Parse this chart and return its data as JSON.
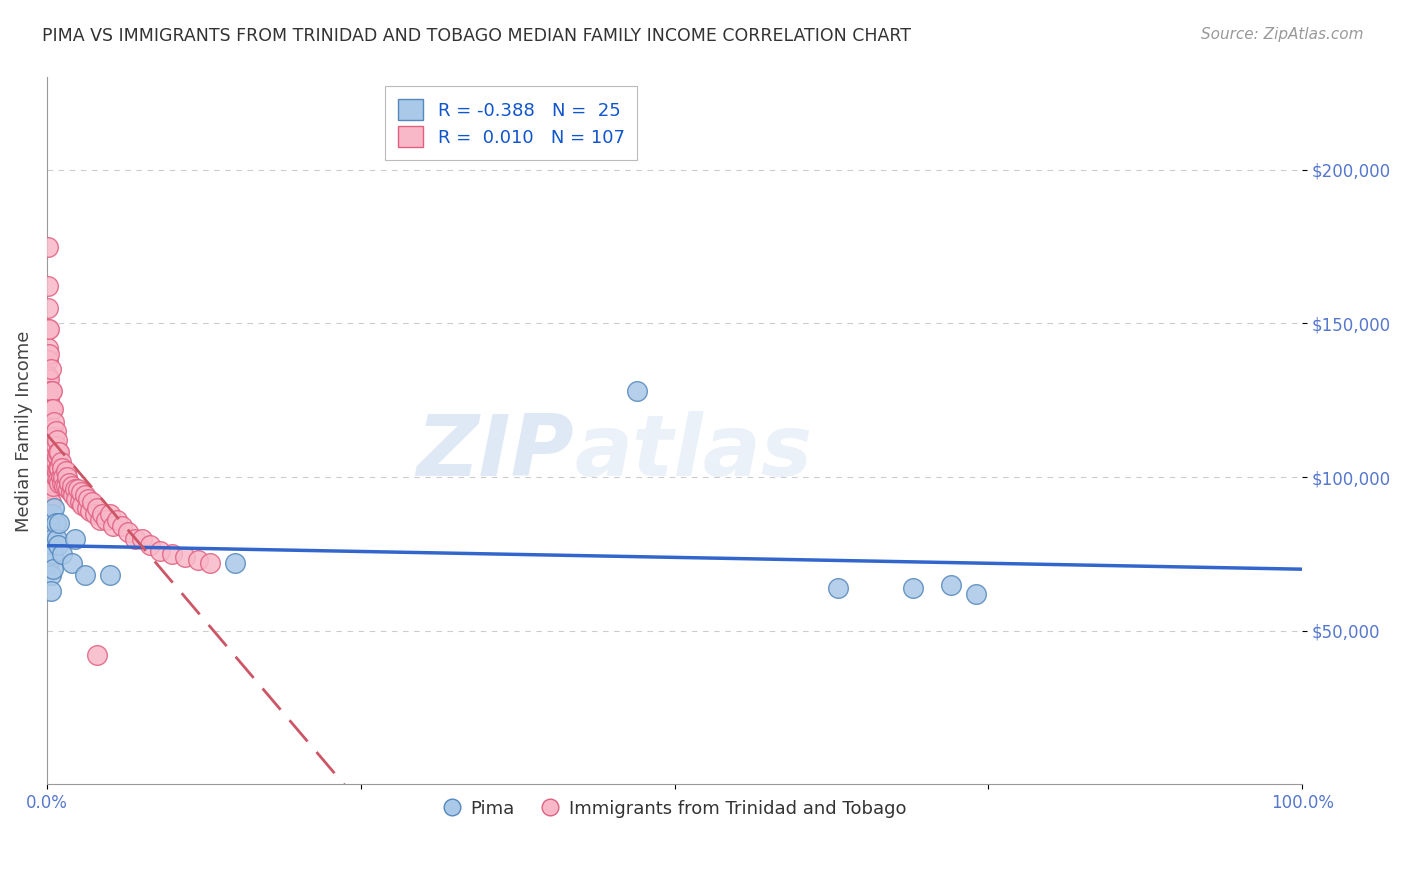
{
  "title": "PIMA VS IMMIGRANTS FROM TRINIDAD AND TOBAGO MEDIAN FAMILY INCOME CORRELATION CHART",
  "source": "Source: ZipAtlas.com",
  "ylabel": "Median Family Income",
  "xlim": [
    0,
    1.0
  ],
  "ylim": [
    0,
    230000
  ],
  "xticks": [
    0.0,
    0.25,
    0.5,
    0.75,
    1.0
  ],
  "xtick_labels": [
    "0.0%",
    "",
    "",
    "",
    "100.0%"
  ],
  "yticks": [
    50000,
    100000,
    150000,
    200000
  ],
  "ytick_labels": [
    "$50,000",
    "$100,000",
    "$150,000",
    "$200,000"
  ],
  "gridline_color": "#cccccc",
  "background_color": "#ffffff",
  "pima_color": "#aac8e8",
  "pima_edge_color": "#5588bb",
  "pima_R": -0.388,
  "pima_N": 25,
  "pima_line_color": "#3366cc",
  "pima_label": "Pima",
  "tt_color": "#f8b8c8",
  "tt_edge_color": "#e06080",
  "tt_R": 0.01,
  "tt_N": 107,
  "tt_line_color": "#cc5566",
  "tt_label": "Immigrants from Trinidad and Tobago",
  "legend_R_color": "#1155cc",
  "legend_fontsize": 13,
  "watermark_text": "ZIP",
  "watermark_text2": "atlas",
  "pima_x": [
    0.002,
    0.002,
    0.002,
    0.003,
    0.003,
    0.004,
    0.004,
    0.005,
    0.005,
    0.006,
    0.007,
    0.008,
    0.009,
    0.01,
    0.012,
    0.02,
    0.022,
    0.03,
    0.05,
    0.15,
    0.47,
    0.63,
    0.69,
    0.72,
    0.74
  ],
  "pima_y": [
    85000,
    78000,
    72000,
    68000,
    63000,
    88000,
    80000,
    75000,
    70000,
    90000,
    85000,
    80000,
    78000,
    85000,
    75000,
    72000,
    80000,
    68000,
    68000,
    72000,
    128000,
    64000,
    64000,
    65000,
    62000
  ],
  "tt_x": [
    0.001,
    0.001,
    0.001,
    0.001,
    0.001,
    0.001,
    0.001,
    0.001,
    0.001,
    0.001,
    0.001,
    0.001,
    0.001,
    0.001,
    0.001,
    0.002,
    0.002,
    0.002,
    0.002,
    0.002,
    0.002,
    0.002,
    0.002,
    0.002,
    0.002,
    0.003,
    0.003,
    0.003,
    0.003,
    0.003,
    0.003,
    0.003,
    0.003,
    0.003,
    0.004,
    0.004,
    0.004,
    0.004,
    0.004,
    0.004,
    0.005,
    0.005,
    0.005,
    0.005,
    0.005,
    0.005,
    0.006,
    0.006,
    0.006,
    0.006,
    0.007,
    0.007,
    0.007,
    0.007,
    0.008,
    0.008,
    0.008,
    0.009,
    0.009,
    0.009,
    0.01,
    0.01,
    0.01,
    0.011,
    0.011,
    0.012,
    0.012,
    0.013,
    0.014,
    0.015,
    0.015,
    0.016,
    0.017,
    0.018,
    0.019,
    0.02,
    0.021,
    0.022,
    0.023,
    0.025,
    0.026,
    0.027,
    0.028,
    0.03,
    0.032,
    0.033,
    0.034,
    0.036,
    0.038,
    0.04,
    0.042,
    0.044,
    0.047,
    0.05,
    0.053,
    0.056,
    0.06,
    0.065,
    0.07,
    0.076,
    0.082,
    0.09,
    0.1,
    0.11,
    0.12,
    0.13,
    0.04
  ],
  "tt_y": [
    175000,
    162000,
    155000,
    148000,
    142000,
    138000,
    133000,
    128000,
    122000,
    118000,
    113000,
    108000,
    103000,
    98000,
    93000,
    148000,
    140000,
    132000,
    125000,
    118000,
    112000,
    107000,
    102000,
    97000,
    93000,
    135000,
    128000,
    122000,
    116000,
    110000,
    105000,
    100000,
    96000,
    92000,
    128000,
    122000,
    116000,
    111000,
    106000,
    102000,
    122000,
    116000,
    111000,
    106000,
    101000,
    97000,
    118000,
    113000,
    108000,
    103000,
    115000,
    110000,
    105000,
    100000,
    112000,
    107000,
    102000,
    108000,
    103000,
    99000,
    108000,
    103000,
    98000,
    105000,
    100000,
    103000,
    98000,
    100000,
    97000,
    102000,
    97000,
    100000,
    96000,
    98000,
    95000,
    97000,
    94000,
    96000,
    93000,
    96000,
    92000,
    95000,
    91000,
    94000,
    90000,
    93000,
    89000,
    92000,
    88000,
    90000,
    86000,
    88000,
    86000,
    88000,
    84000,
    86000,
    84000,
    82000,
    80000,
    80000,
    78000,
    76000,
    75000,
    74000,
    73000,
    72000,
    42000
  ]
}
